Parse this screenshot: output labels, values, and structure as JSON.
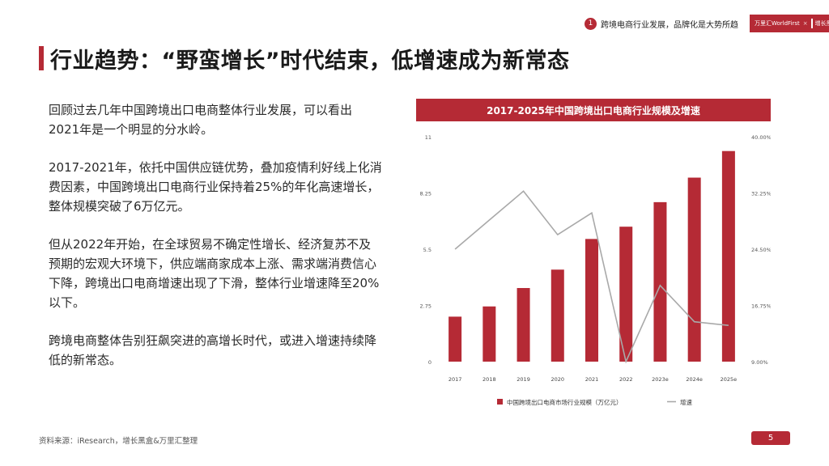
{
  "header": {
    "section_number": "1",
    "section_title": "跨境电商行业发展，品牌化是大势所趋",
    "brand_left": "万里汇WorldFirst",
    "brand_sep": "×",
    "brand_right": "增长黑盒"
  },
  "page_title": "行业趋势：“野蛮增长”时代结束，低增速成为新常态",
  "paragraphs": [
    "回顾过去几年中国跨境出口电商整体行业发展，可以看出2021年是一个明显的分水岭。",
    "2017-2021年，依托中国供应链优势，叠加疫情利好线上化消费因素，中国跨境出口电商行业保持着25%的年化高速增长，整体规模突破了6万亿元。",
    "但从2022年开始，在全球贸易不确定性增长、经济复苏不及预期的宏观大环境下，供应端商家成本上涨、需求端消费信心下降，跨境出口电商增速出现了下滑，整体行业增速降至20%以下。",
    "跨境电商整体告别狂飙突进的高增长时代，或进入增速持续降低的新常态。"
  ],
  "chart_data": {
    "type": "bar",
    "title": "2017-2025年中国跨境出口电商行业规模及增速",
    "categories": [
      "2017",
      "2018",
      "2019",
      "2020",
      "2021",
      "2022",
      "2023e",
      "2024e",
      "2025e"
    ],
    "series": [
      {
        "name": "中国跨境出口电商市场行业规模（万亿元）",
        "type": "bar",
        "axis": "left",
        "values": [
          2.2,
          2.7,
          3.6,
          4.5,
          6.0,
          6.6,
          7.8,
          9.0,
          10.3
        ]
      },
      {
        "name": "增速",
        "type": "line",
        "axis": "right",
        "values": [
          0.245,
          0.285,
          0.325,
          0.265,
          0.295,
          0.09,
          0.195,
          0.145,
          0.14
        ]
      }
    ],
    "y_left": {
      "ticks": [
        "0",
        "2.75",
        "5.5",
        "8.25",
        "11"
      ],
      "min": 0,
      "max": 11
    },
    "y_right": {
      "ticks": [
        "9.00%",
        "16.75%",
        "24.50%",
        "32.25%",
        "40.00%"
      ],
      "min": 0.09,
      "max": 0.4
    },
    "legend_position": "bottom",
    "grid": false,
    "colors": {
      "bar": "#b52a35",
      "line": "#a9a9a9"
    }
  },
  "footer": {
    "source": "资料来源：iResearch，增长黑盒&万里汇整理",
    "page": "5"
  }
}
